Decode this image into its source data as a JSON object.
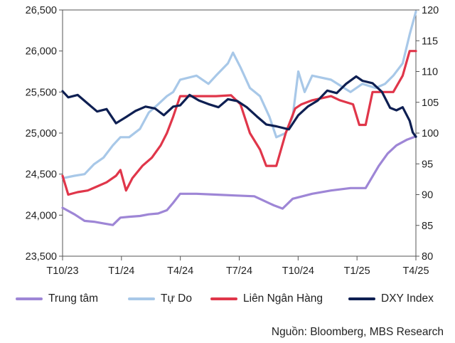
{
  "chart_data": {
    "type": "line",
    "title": "",
    "x_tick_labels": [
      "T10/23",
      "T1/24",
      "T4/24",
      "T7/24",
      "T10/24",
      "T1/25",
      "T4/25"
    ],
    "x_range": [
      "2023-10-01",
      "2025-04-15"
    ],
    "y_left": {
      "range": [
        23500,
        26500
      ],
      "ticks": [
        "23,500",
        "24,000",
        "24,500",
        "25,000",
        "25,500",
        "26,000",
        "26,500"
      ]
    },
    "y_right": {
      "range": [
        80,
        120
      ],
      "ticks": [
        "80",
        "85",
        "90",
        "95",
        "100",
        "105",
        "110",
        "115",
        "120"
      ]
    },
    "grid": false,
    "legend_position": "bottom",
    "series": [
      {
        "name": "Trung tâm",
        "axis": "left",
        "color": "#9e86d6",
        "points": [
          [
            "2023-10-01",
            24090
          ],
          [
            "2023-10-20",
            24010
          ],
          [
            "2023-11-05",
            23930
          ],
          [
            "2023-11-20",
            23920
          ],
          [
            "2023-12-05",
            23900
          ],
          [
            "2023-12-20",
            23880
          ],
          [
            "2024-01-01",
            23970
          ],
          [
            "2024-01-15",
            23980
          ],
          [
            "2024-02-01",
            23990
          ],
          [
            "2024-02-15",
            24010
          ],
          [
            "2024-03-01",
            24020
          ],
          [
            "2024-03-15",
            24060
          ],
          [
            "2024-03-25",
            24150
          ],
          [
            "2024-04-05",
            24260
          ],
          [
            "2024-05-01",
            24260
          ],
          [
            "2024-06-01",
            24250
          ],
          [
            "2024-07-01",
            24240
          ],
          [
            "2024-08-01",
            24230
          ],
          [
            "2024-08-15",
            24180
          ],
          [
            "2024-09-01",
            24120
          ],
          [
            "2024-09-15",
            24080
          ],
          [
            "2024-10-01",
            24200
          ],
          [
            "2024-11-01",
            24260
          ],
          [
            "2024-12-01",
            24300
          ],
          [
            "2025-01-01",
            24330
          ],
          [
            "2025-01-25",
            24330
          ],
          [
            "2025-02-15",
            24600
          ],
          [
            "2025-03-01",
            24750
          ],
          [
            "2025-03-15",
            24850
          ],
          [
            "2025-04-01",
            24920
          ],
          [
            "2025-04-15",
            24960
          ]
        ]
      },
      {
        "name": "Tự Do",
        "axis": "left",
        "color": "#a8c8e8",
        "points": [
          [
            "2023-10-01",
            24450
          ],
          [
            "2023-10-20",
            24480
          ],
          [
            "2023-11-05",
            24500
          ],
          [
            "2023-11-20",
            24620
          ],
          [
            "2023-12-05",
            24700
          ],
          [
            "2023-12-20",
            24850
          ],
          [
            "2024-01-01",
            24950
          ],
          [
            "2024-01-15",
            24950
          ],
          [
            "2024-02-01",
            25050
          ],
          [
            "2024-02-15",
            25250
          ],
          [
            "2024-03-01",
            25350
          ],
          [
            "2024-03-15",
            25450
          ],
          [
            "2024-03-25",
            25500
          ],
          [
            "2024-04-05",
            25650
          ],
          [
            "2024-05-01",
            25700
          ],
          [
            "2024-05-20",
            25600
          ],
          [
            "2024-06-01",
            25700
          ],
          [
            "2024-06-20",
            25850
          ],
          [
            "2024-06-28",
            25980
          ],
          [
            "2024-07-10",
            25800
          ],
          [
            "2024-07-25",
            25550
          ],
          [
            "2024-08-10",
            25450
          ],
          [
            "2024-08-25",
            25200
          ],
          [
            "2024-09-05",
            24950
          ],
          [
            "2024-09-20",
            25000
          ],
          [
            "2024-10-01",
            25200
          ],
          [
            "2024-10-10",
            25750
          ],
          [
            "2024-10-20",
            25500
          ],
          [
            "2024-11-01",
            25700
          ],
          [
            "2024-12-01",
            25650
          ],
          [
            "2025-01-01",
            25500
          ],
          [
            "2025-01-20",
            25600
          ],
          [
            "2025-02-10",
            25550
          ],
          [
            "2025-02-25",
            25600
          ],
          [
            "2025-03-10",
            25700
          ],
          [
            "2025-03-25",
            25850
          ],
          [
            "2025-04-05",
            26200
          ],
          [
            "2025-04-15",
            26480
          ]
        ]
      },
      {
        "name": "Liên Ngân Hàng",
        "axis": "left",
        "color": "#e0364a",
        "points": [
          [
            "2023-10-01",
            24480
          ],
          [
            "2023-10-10",
            24250
          ],
          [
            "2023-10-25",
            24280
          ],
          [
            "2023-11-10",
            24300
          ],
          [
            "2023-11-25",
            24350
          ],
          [
            "2023-12-10",
            24400
          ],
          [
            "2023-12-25",
            24480
          ],
          [
            "2024-01-01",
            24550
          ],
          [
            "2024-01-10",
            24300
          ],
          [
            "2024-01-20",
            24450
          ],
          [
            "2024-02-05",
            24600
          ],
          [
            "2024-02-20",
            24700
          ],
          [
            "2024-03-05",
            24850
          ],
          [
            "2024-03-15",
            25000
          ],
          [
            "2024-03-25",
            25200
          ],
          [
            "2024-04-05",
            25450
          ],
          [
            "2024-05-01",
            25450
          ],
          [
            "2024-06-01",
            25450
          ],
          [
            "2024-06-25",
            25460
          ],
          [
            "2024-07-10",
            25350
          ],
          [
            "2024-07-25",
            25000
          ],
          [
            "2024-08-10",
            24800
          ],
          [
            "2024-08-20",
            24600
          ],
          [
            "2024-09-05",
            24600
          ],
          [
            "2024-09-20",
            25000
          ],
          [
            "2024-10-05",
            25300
          ],
          [
            "2024-10-15",
            25350
          ],
          [
            "2024-11-01",
            25400
          ],
          [
            "2024-12-01",
            25450
          ],
          [
            "2024-12-15",
            25400
          ],
          [
            "2025-01-05",
            25350
          ],
          [
            "2025-01-15",
            25100
          ],
          [
            "2025-01-25",
            25100
          ],
          [
            "2025-02-05",
            25500
          ],
          [
            "2025-02-25",
            25500
          ],
          [
            "2025-03-10",
            25500
          ],
          [
            "2025-03-25",
            25700
          ],
          [
            "2025-04-05",
            26000
          ],
          [
            "2025-04-15",
            26000
          ]
        ]
      },
      {
        "name": "DXY Index",
        "axis": "right",
        "color": "#0e1f52",
        "points": [
          [
            "2023-10-01",
            106.8
          ],
          [
            "2023-10-10",
            105.8
          ],
          [
            "2023-10-25",
            106.2
          ],
          [
            "2023-11-10",
            104.8
          ],
          [
            "2023-11-25",
            103.5
          ],
          [
            "2023-12-10",
            103.9
          ],
          [
            "2023-12-25",
            101.6
          ],
          [
            "2024-01-10",
            102.6
          ],
          [
            "2024-01-25",
            103.6
          ],
          [
            "2024-02-10",
            104.3
          ],
          [
            "2024-02-25",
            104.0
          ],
          [
            "2024-03-10",
            102.9
          ],
          [
            "2024-03-25",
            104.3
          ],
          [
            "2024-04-05",
            104.5
          ],
          [
            "2024-04-20",
            106.2
          ],
          [
            "2024-05-05",
            105.3
          ],
          [
            "2024-05-20",
            104.7
          ],
          [
            "2024-06-05",
            104.2
          ],
          [
            "2024-06-20",
            105.5
          ],
          [
            "2024-07-05",
            105.2
          ],
          [
            "2024-07-20",
            104.2
          ],
          [
            "2024-08-05",
            102.7
          ],
          [
            "2024-08-20",
            101.4
          ],
          [
            "2024-09-05",
            101.1
          ],
          [
            "2024-09-25",
            100.6
          ],
          [
            "2024-10-10",
            102.9
          ],
          [
            "2024-10-25",
            104.3
          ],
          [
            "2024-11-10",
            105.3
          ],
          [
            "2024-11-25",
            106.9
          ],
          [
            "2024-12-10",
            106.5
          ],
          [
            "2024-12-25",
            108.0
          ],
          [
            "2025-01-10",
            109.2
          ],
          [
            "2025-01-20",
            108.5
          ],
          [
            "2025-02-05",
            108.1
          ],
          [
            "2025-02-20",
            106.7
          ],
          [
            "2025-03-05",
            104.1
          ],
          [
            "2025-03-15",
            103.7
          ],
          [
            "2025-03-25",
            104.2
          ],
          [
            "2025-04-05",
            102.0
          ],
          [
            "2025-04-10",
            100.1
          ],
          [
            "2025-04-15",
            99.4
          ]
        ]
      }
    ]
  },
  "source": "Nguồn: Bloomberg, MBS Research"
}
